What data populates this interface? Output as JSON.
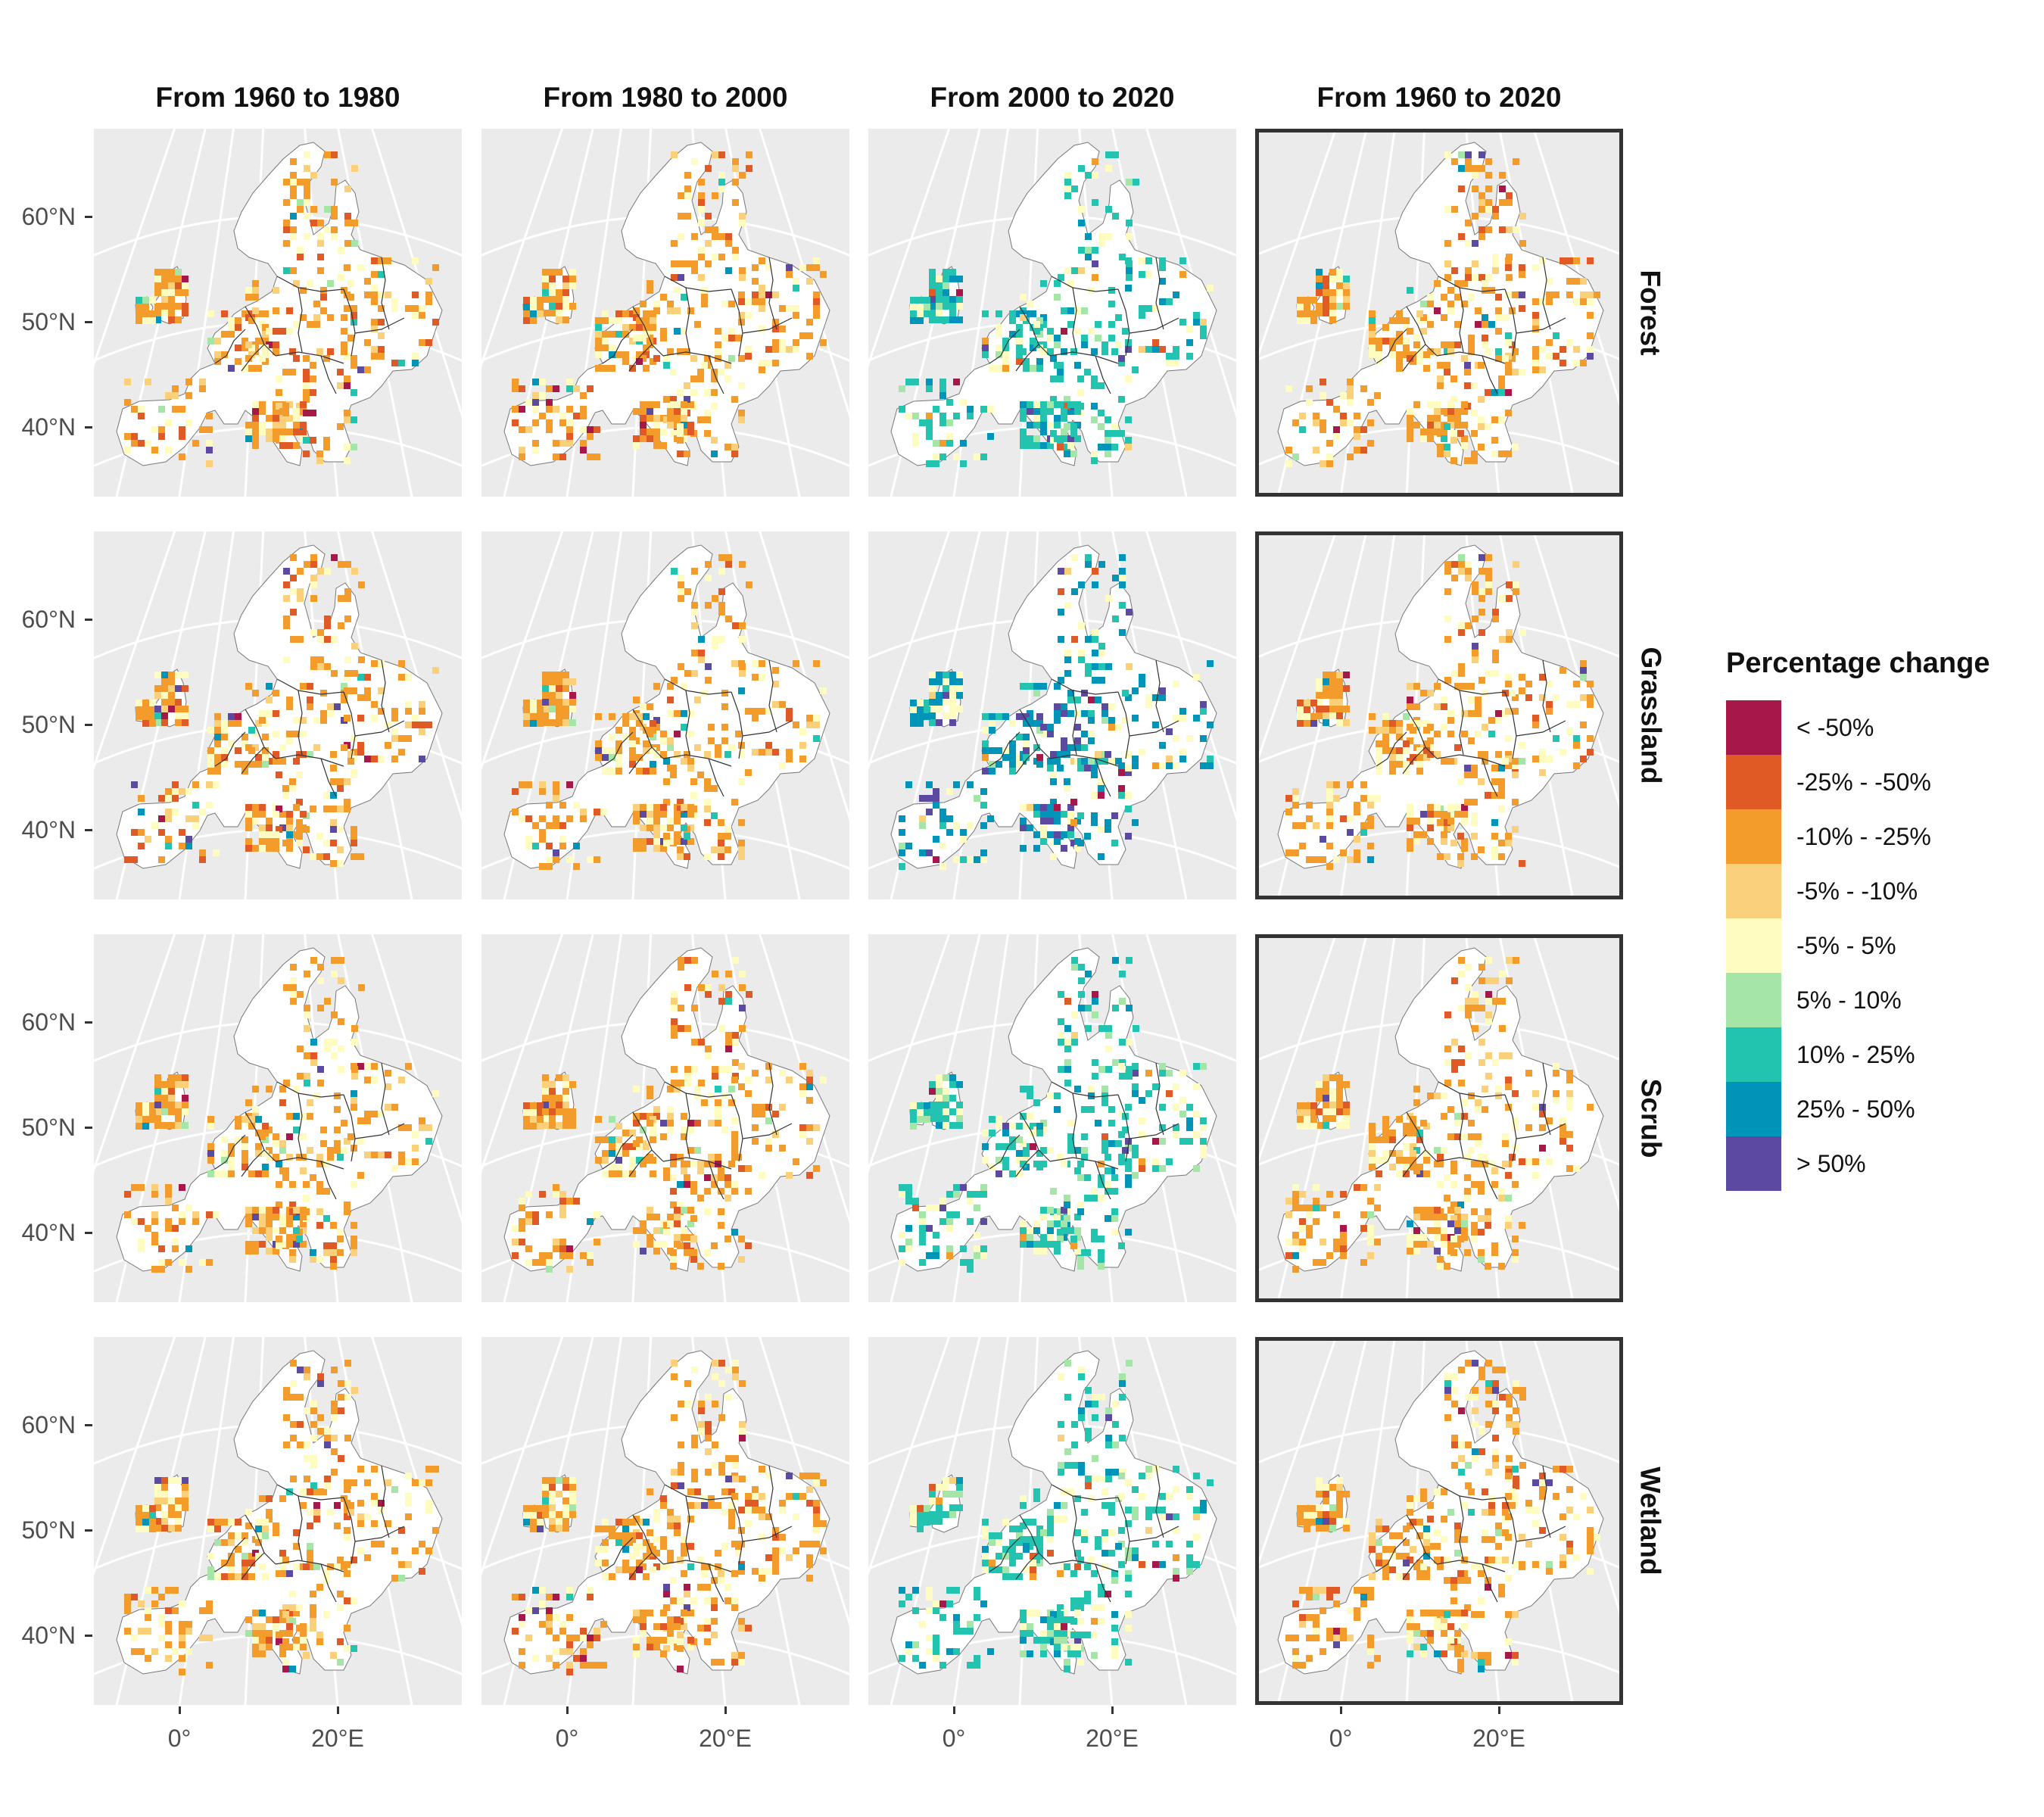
{
  "column_titles": [
    "From 1960 to 1980",
    "From 1980 to 2000",
    "From 2000 to 2020",
    "From 1960 to 2020"
  ],
  "row_titles": [
    "Forest",
    "Grassland",
    "Scrub",
    "Wetland"
  ],
  "lat_labels": [
    "60°N",
    "50°N",
    "40°N"
  ],
  "lon_labels": [
    "0°",
    "20°E"
  ],
  "legend": {
    "title": "Percentage change",
    "items": [
      {
        "label": "< -50%",
        "color": "#a6174a"
      },
      {
        "label": "-25% - -50%",
        "color": "#e05a26"
      },
      {
        "label": "-10% - -25%",
        "color": "#f39c2b"
      },
      {
        "label": "-5% - -10%",
        "color": "#fad17a"
      },
      {
        "label": "-5% - 5%",
        "color": "#fefcc0"
      },
      {
        "label": "5% - 10%",
        "color": "#a5e5a8"
      },
      {
        "label": "10% - 25%",
        "color": "#22c4b0"
      },
      {
        "label": "25% - 50%",
        "color": "#0094b8"
      },
      {
        "label": "> 50%",
        "color": "#5b4aa0"
      }
    ]
  },
  "colors": {
    "panel_background": "#ebebeb",
    "graticule": "#ffffff",
    "land": "#ffffff",
    "border": "#333333",
    "highlight_frame": "#333333"
  },
  "highlighted_column": "From 1960 to 2020",
  "chart_data": {
    "type": "heatmap",
    "description_type": "faceted choropleth grid maps of Europe",
    "facets_columns": [
      "From 1960 to 1980",
      "From 1980 to 2000",
      "From 2000 to 2020",
      "From 1960 to 2020"
    ],
    "facets_rows": [
      "Forest",
      "Grassland",
      "Scrub",
      "Wetland"
    ],
    "latitude_ticks": [
      40,
      50,
      60
    ],
    "longitude_ticks": [
      0,
      20
    ],
    "latitude_range": [
      34,
      70
    ],
    "longitude_range": [
      -10,
      35
    ],
    "legend_categories": [
      "< -50%",
      "-25% - -50%",
      "-10% - -25%",
      "-5% - -10%",
      "-5% - 5%",
      "5% - 10%",
      "10% - 25%",
      "25% - 50%",
      "> 50%"
    ],
    "dominant_category": [
      [
        "-10% - -25%",
        "-10% - -25%",
        "10% - 25%",
        "-10% - -25%"
      ],
      [
        "-10% - -25%",
        "-10% - -25%",
        "25% - 50%",
        "-10% - -25%"
      ],
      [
        "-10% - -25%",
        "-10% - -25%",
        "10% - 25%",
        "-10% - -25%"
      ],
      [
        "-10% - -25%",
        "-10% - -25%",
        "10% - 25%",
        "-10% - -25%"
      ]
    ]
  }
}
